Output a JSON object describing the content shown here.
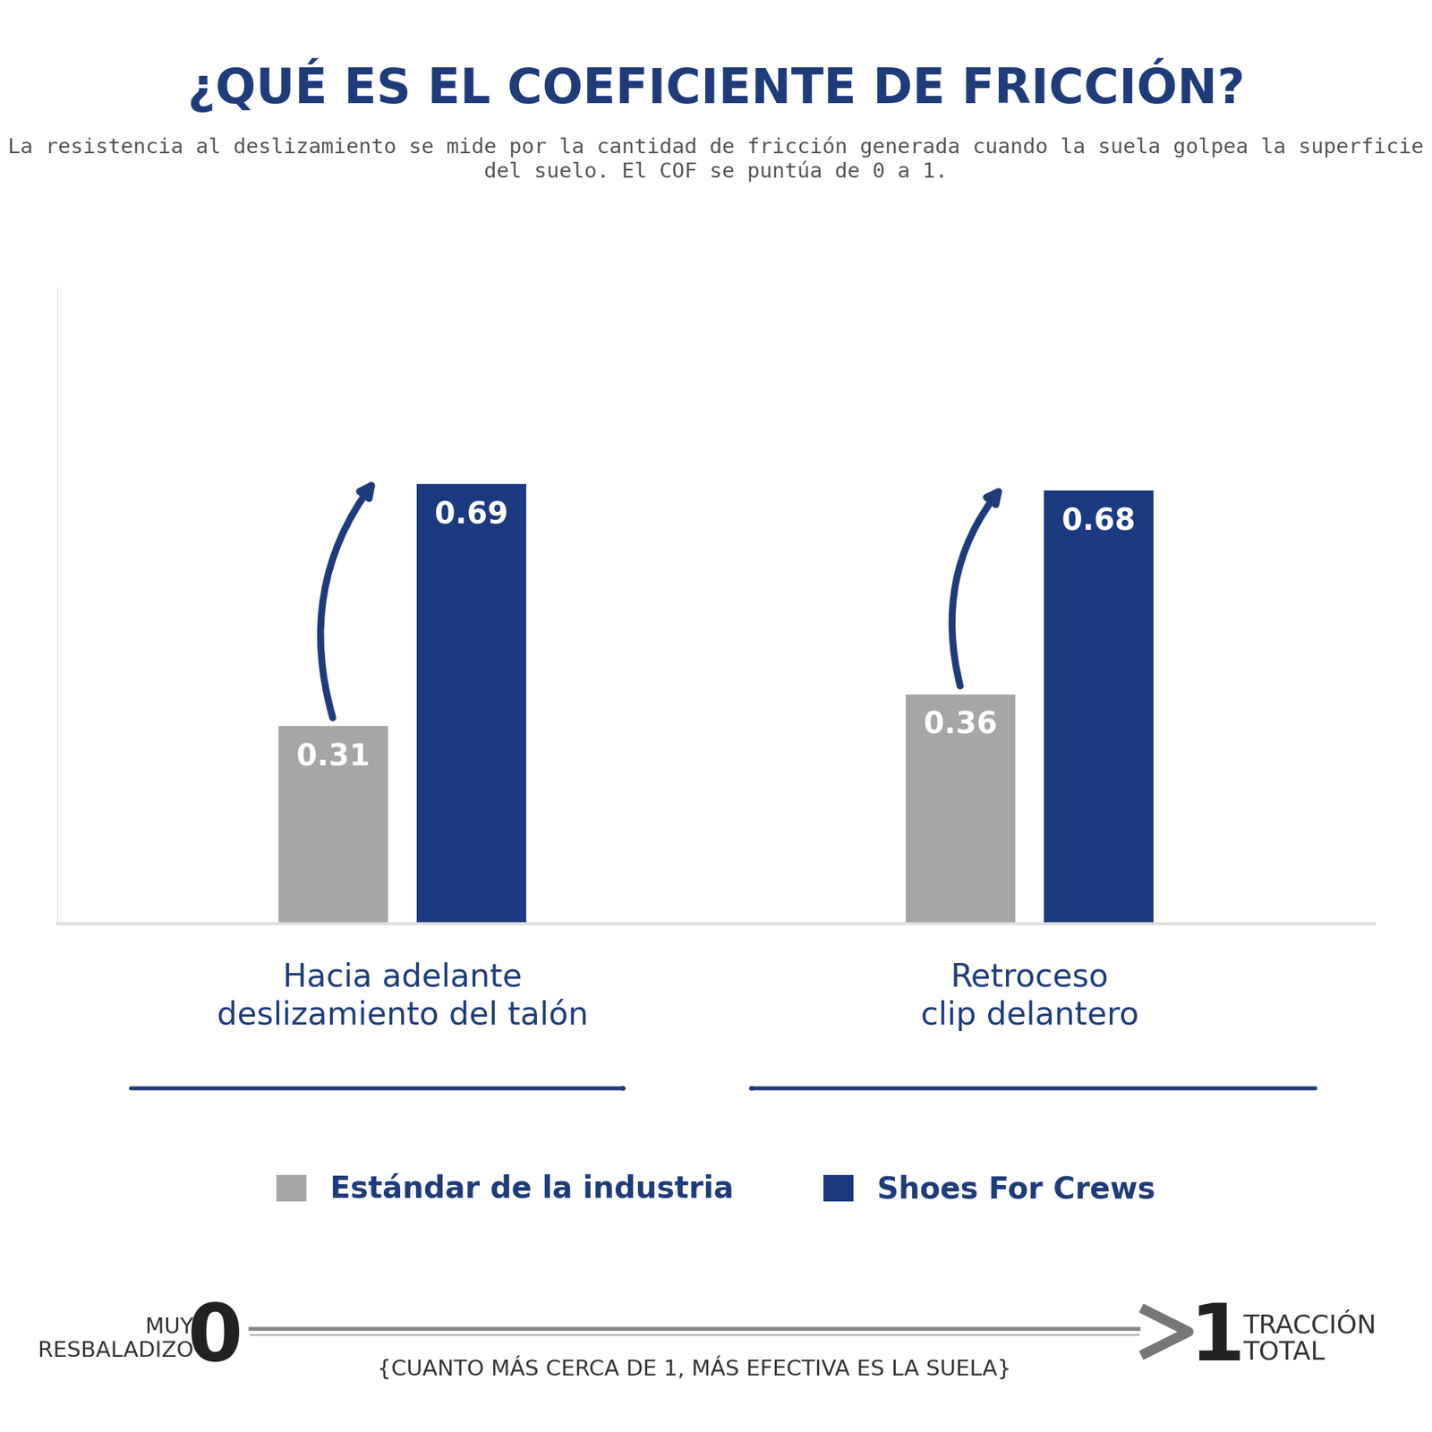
{
  "chart_data": {
    "type": "bar",
    "title": "¿QUÉ ES EL COEFICIENTE DE FRICCIÓN?",
    "subtitle": "La resistencia al deslizamiento se mide por la cantidad de fricción generada cuando la suela golpea la superficie del suelo. El COF se puntúa de 0 a 1.",
    "categories": [
      "Hacia adelante\ndeslizamiento del talón",
      "Retroceso\nclip delantero"
    ],
    "series": [
      {
        "name": "Estándar de la industria",
        "color": "#a6a6a6",
        "values": [
          0.31,
          0.36
        ]
      },
      {
        "name": "Shoes For Crews",
        "color": "#1a3a80",
        "values": [
          0.69,
          0.68
        ]
      }
    ],
    "ylim": [
      0,
      1
    ],
    "tick_labels": false,
    "data_labels": true,
    "legend": "lower center",
    "scale": {
      "min": 0,
      "min_label": "MUY\nRESBALADIZO",
      "max": 1,
      "max_label": "TRACCIÓN\nTOTAL",
      "note": "{CUANTO MÁS CERCA DE 1, MÁS EFECTIVA ES LA SUELA}"
    }
  }
}
